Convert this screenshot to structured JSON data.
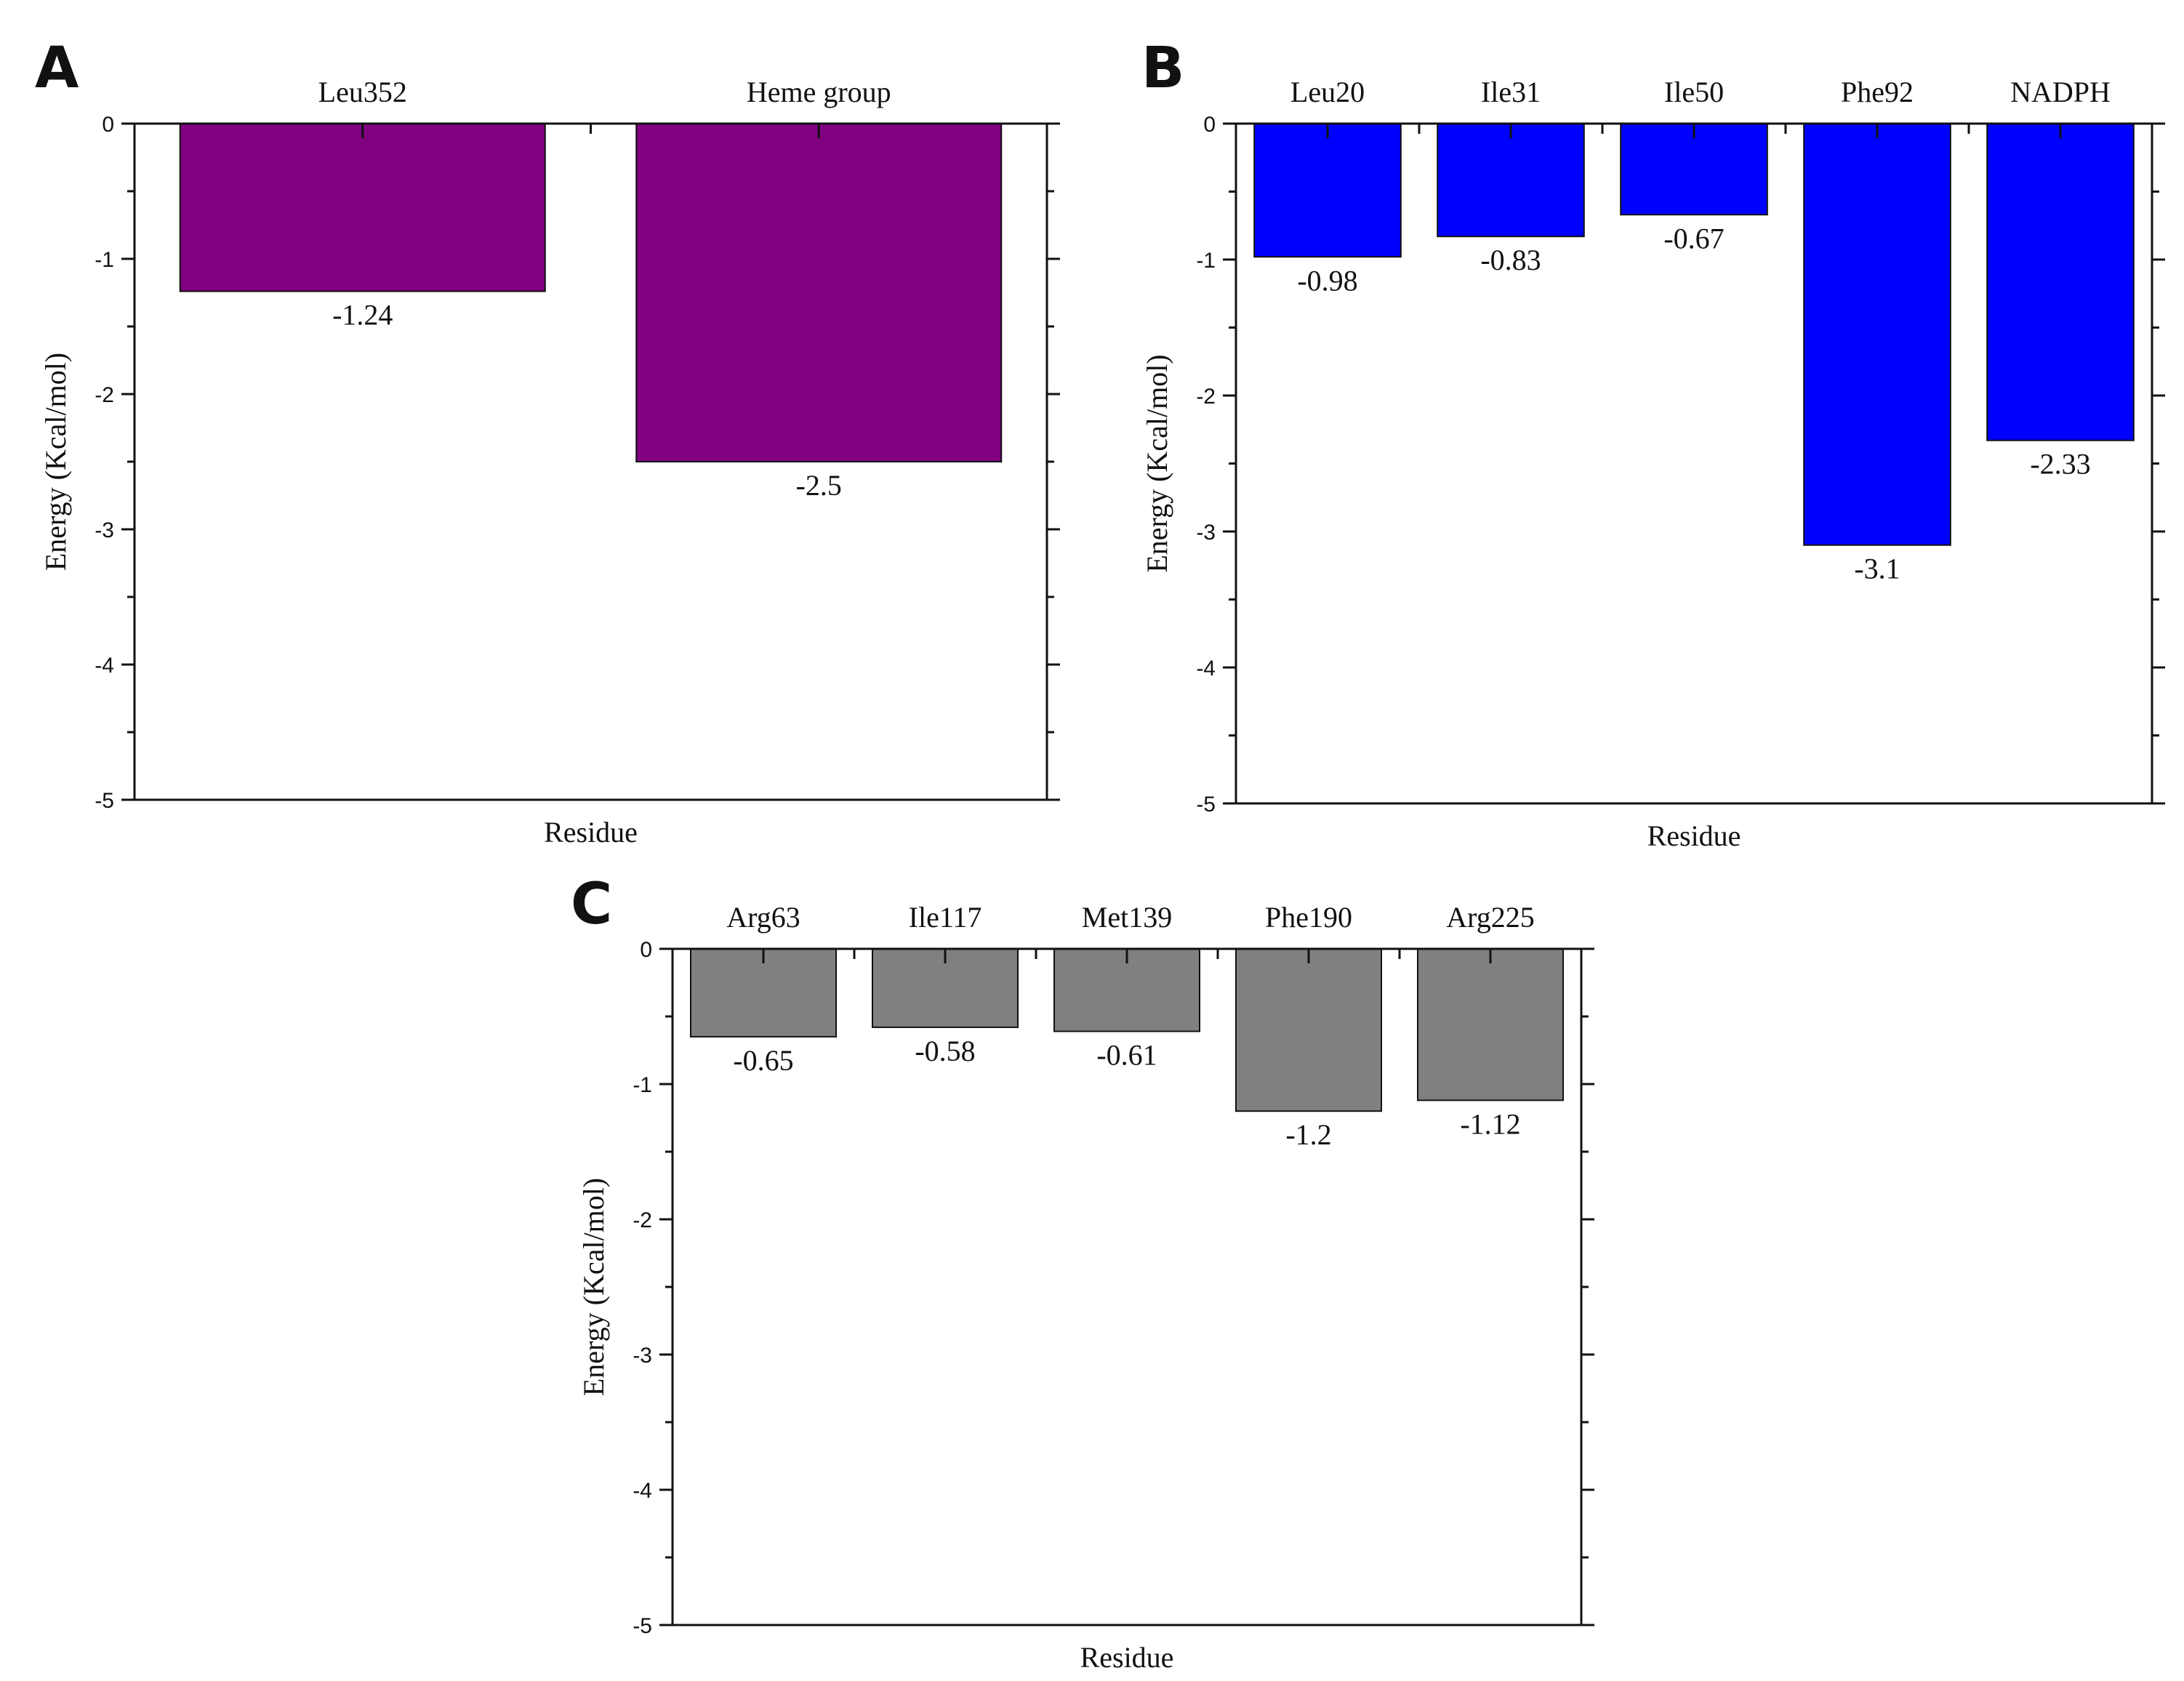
{
  "chart_data": [
    {
      "panel": "A",
      "type": "bar",
      "categories": [
        "Leu352",
        "Heme group"
      ],
      "values": [
        -1.24,
        -2.5
      ],
      "value_labels": [
        "-1.24",
        "-2.5"
      ],
      "xlabel": "Residue",
      "ylabel": "Energy (Kcal/mol)",
      "ylim": [
        -5,
        0
      ],
      "yticks": [
        "0",
        "-1",
        "-2",
        "-3",
        "-4",
        "-5"
      ],
      "category_labels_position": "top",
      "bar_color": "#800080",
      "grid": false
    },
    {
      "panel": "B",
      "type": "bar",
      "categories": [
        "Leu20",
        "Ile31",
        "Ile50",
        "Phe92",
        "NADPH"
      ],
      "values": [
        -0.98,
        -0.83,
        -0.67,
        -3.1,
        -2.33
      ],
      "value_labels": [
        "-0.98",
        "-0.83",
        "-0.67",
        "-3.1",
        "-2.33"
      ],
      "xlabel": "Residue",
      "ylabel": "Energy (Kcal/mol)",
      "ylim": [
        -5,
        0
      ],
      "yticks": [
        "0",
        "-1",
        "-2",
        "-3",
        "-4",
        "-5"
      ],
      "category_labels_position": "top",
      "bar_color": "#0000FF",
      "grid": false
    },
    {
      "panel": "C",
      "type": "bar",
      "categories": [
        "Arg63",
        "Ile117",
        "Met139",
        "Phe190",
        "Arg225"
      ],
      "values": [
        -0.65,
        -0.58,
        -0.61,
        -1.2,
        -1.12
      ],
      "value_labels": [
        "-0.65",
        "-0.58",
        "-0.61",
        "-1.2",
        "-1.12"
      ],
      "xlabel": "Residue",
      "ylabel": "Energy (Kcal/mol)",
      "ylim": [
        -5,
        0
      ],
      "yticks": [
        "0",
        "-1",
        "-2",
        "-3",
        "-4",
        "-5"
      ],
      "category_labels_position": "top",
      "bar_color": "#808080",
      "grid": false
    }
  ]
}
